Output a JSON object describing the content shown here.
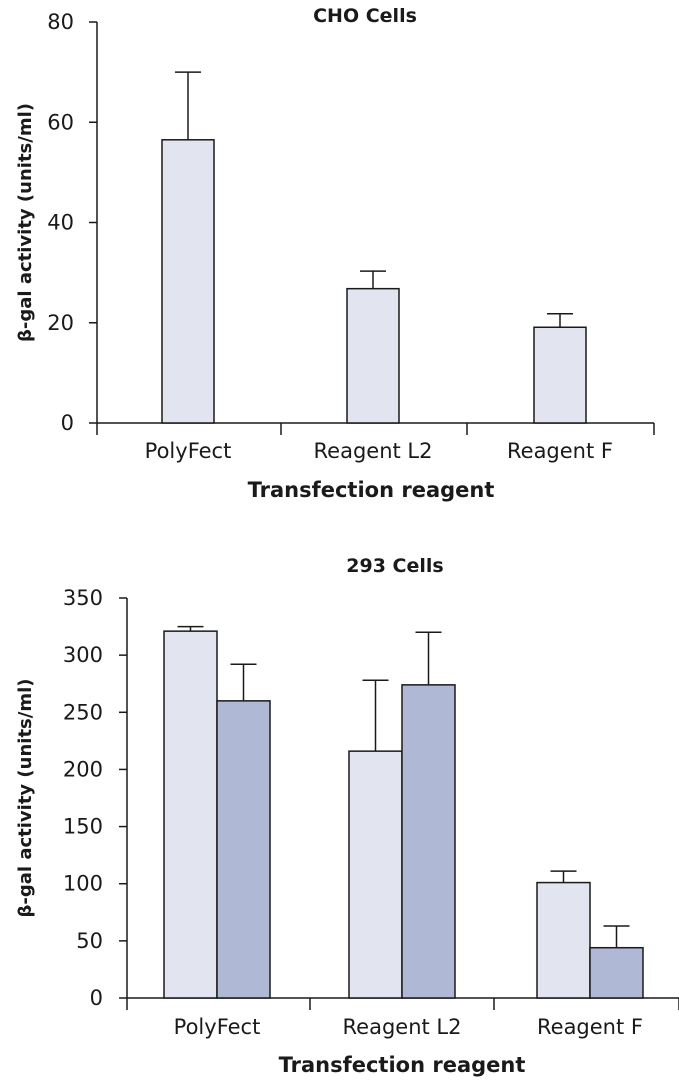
{
  "chart_data": [
    {
      "type": "bar",
      "title": "CHO Cells",
      "xlabel": "Transfection reagent",
      "ylabel": "β-gal activity (units/ml)",
      "categories": [
        "PolyFect",
        "Reagent L2",
        "Reagent F"
      ],
      "ylim": [
        0,
        80
      ],
      "yticks": [
        0,
        20,
        40,
        60,
        80
      ],
      "grid": false,
      "series": [
        {
          "values": [
            56.5,
            26.8,
            19.1
          ],
          "errors": [
            13.5,
            3.5,
            2.7
          ],
          "color": "#e2e4f0"
        }
      ]
    },
    {
      "type": "bar",
      "title": "293 Cells",
      "xlabel": "Transfection reagent",
      "ylabel": "β-gal activity (units/ml)",
      "categories": [
        "PolyFect",
        "Reagent L2",
        "Reagent F"
      ],
      "ylim": [
        0,
        350
      ],
      "yticks": [
        0,
        50,
        100,
        150,
        200,
        250,
        300,
        350
      ],
      "grid": false,
      "series": [
        {
          "values": [
            321,
            216,
            101
          ],
          "errors": [
            4,
            62,
            10
          ],
          "color": "#e2e4f0"
        },
        {
          "values": [
            260,
            274,
            44
          ],
          "errors": [
            32,
            46,
            19
          ],
          "color": "#afb8d4"
        }
      ]
    }
  ]
}
